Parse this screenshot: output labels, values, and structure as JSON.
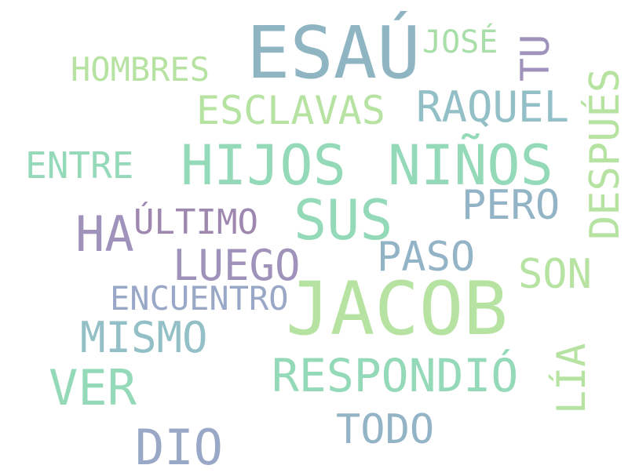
{
  "words": [
    {
      "text": "ESAÚ",
      "color": "#8fb5c3"
    },
    {
      "text": "JOSÉ",
      "color": "#a8dea8"
    },
    {
      "text": "TU",
      "color": "#a093bb"
    },
    {
      "text": "HOMBRES",
      "color": "#b6e3a1"
    },
    {
      "text": "ESCLAVAS",
      "color": "#b6e3a1"
    },
    {
      "text": "RAQUEL",
      "color": "#93bfc6"
    },
    {
      "text": "DESPUÉS",
      "color": "#b6e3a1"
    },
    {
      "text": "ENTRE",
      "color": "#94d9b8"
    },
    {
      "text": "HIJOS",
      "color": "#94d9b8"
    },
    {
      "text": "NIÑOS",
      "color": "#94d9b8"
    },
    {
      "text": "PERO",
      "color": "#93b4c6"
    },
    {
      "text": "HA",
      "color": "#a093bb"
    },
    {
      "text": "ÚLTIMO",
      "color": "#9f88b0"
    },
    {
      "text": "SUS",
      "color": "#94d9b8"
    },
    {
      "text": "LUEGO",
      "color": "#a093bb"
    },
    {
      "text": "PASO",
      "color": "#93b4c6"
    },
    {
      "text": "SON",
      "color": "#b6e3a1"
    },
    {
      "text": "ENCUENTRO",
      "color": "#99a8c6"
    },
    {
      "text": "JACOB",
      "color": "#b6e3a1"
    },
    {
      "text": "MISMO",
      "color": "#93bfc6"
    },
    {
      "text": "RESPONDIÓ",
      "color": "#94d9b8"
    },
    {
      "text": "VER",
      "color": "#94d9b8"
    },
    {
      "text": "LÍA",
      "color": "#b6e3a1"
    },
    {
      "text": "TODO",
      "color": "#93b4c6"
    },
    {
      "text": "DIO",
      "color": "#99a8c6"
    }
  ]
}
